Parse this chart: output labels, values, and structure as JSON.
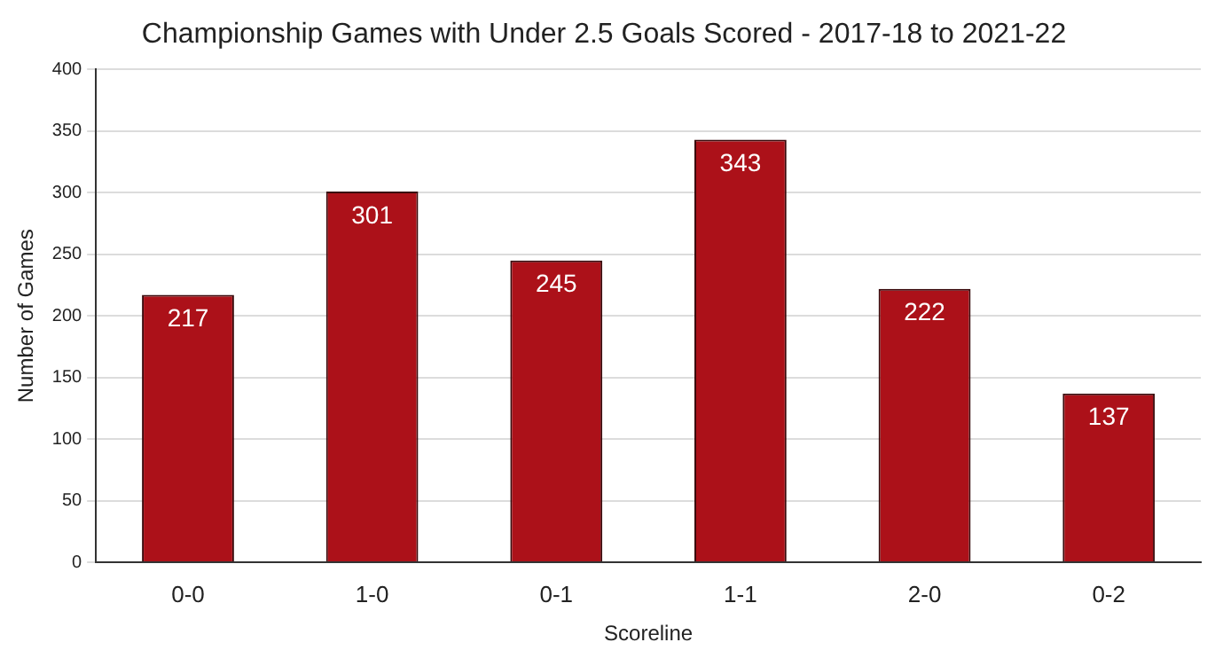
{
  "chart_data": {
    "type": "bar",
    "title": "Championship Games with Under 2.5 Goals Scored - 2017-18 to 2021-22",
    "xlabel": "Scoreline",
    "ylabel": "Number of Games",
    "categories": [
      "0-0",
      "1-0",
      "0-1",
      "1-1",
      "2-0",
      "0-2"
    ],
    "values": [
      217,
      301,
      245,
      343,
      222,
      137
    ],
    "color": "#ac1119",
    "ylim": [
      0,
      400
    ],
    "yticks": [
      0,
      50,
      100,
      150,
      200,
      250,
      300,
      350,
      400
    ],
    "grid": "y",
    "legend": false,
    "data_labels": true
  }
}
